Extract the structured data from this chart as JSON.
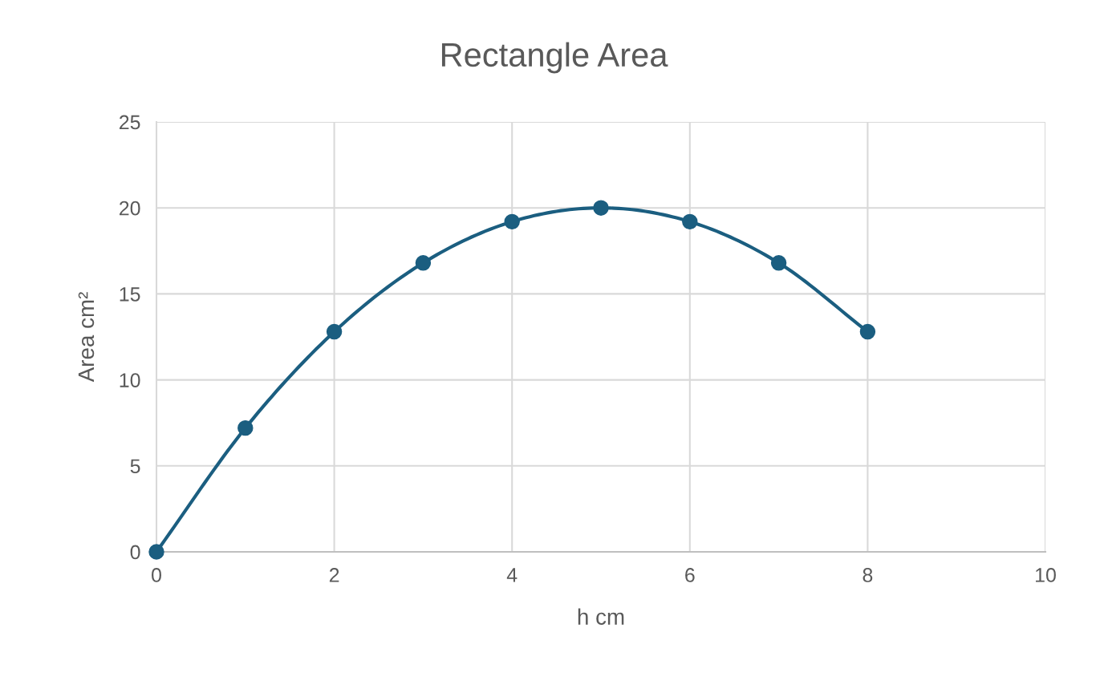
{
  "chart_data": {
    "type": "line",
    "title": "Rectangle Area",
    "xlabel": "h cm",
    "ylabel": "Area cm²",
    "x": [
      0,
      1,
      2,
      3,
      4,
      5,
      6,
      7,
      8
    ],
    "series": [
      {
        "color": "#1b5e80",
        "values": [
          0,
          7.2,
          12.8,
          16.8,
          19.2,
          20,
          19.2,
          16.8,
          12.8
        ]
      }
    ],
    "xlim": [
      0,
      10
    ],
    "xticks": [
      0,
      2,
      4,
      6,
      8,
      10
    ],
    "ylim": [
      0,
      25
    ],
    "yticks": [
      0,
      5,
      10,
      15,
      20,
      25
    ],
    "grid": true,
    "marker": "circle",
    "line_style": "solid"
  }
}
